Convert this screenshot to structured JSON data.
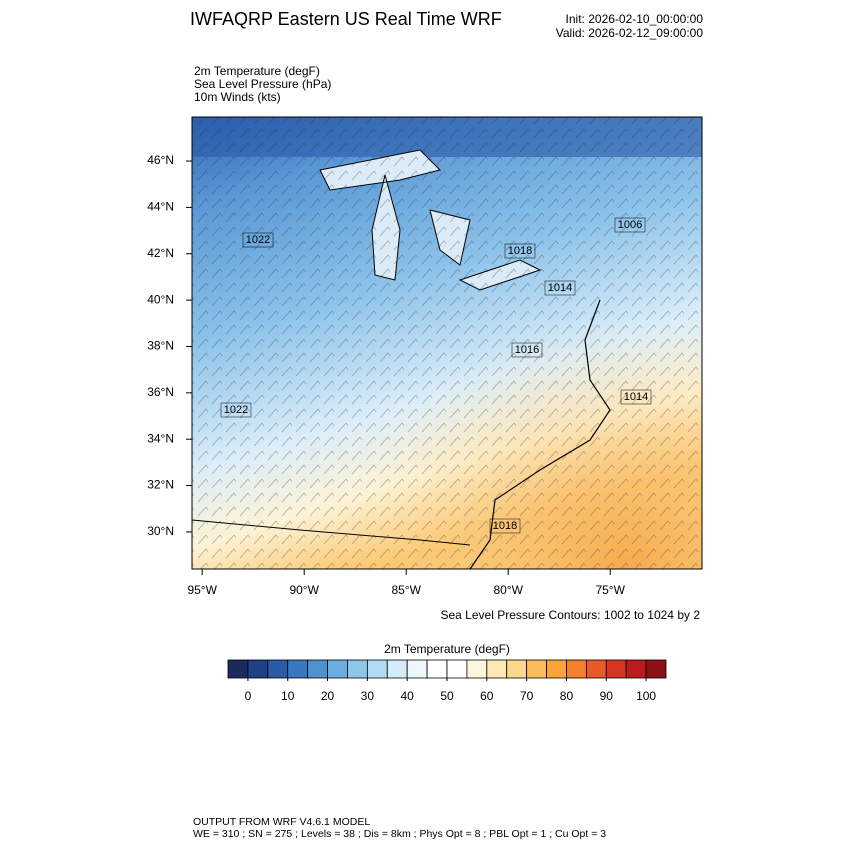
{
  "header": {
    "title": "IWFAQRP Eastern US Real Time WRF",
    "init": "Init: 2026-02-10_00:00:00",
    "valid": "Valid: 2026-02-12_09:00:00"
  },
  "fields": [
    "2m Temperature   (degF)",
    "Sea Level Pressure   (hPa)",
    "10m Winds   (kts)"
  ],
  "map": {
    "xlim": [
      -95.5,
      -70.5
    ],
    "ylim": [
      28.4,
      47.9
    ],
    "xticks": [
      {
        "value": -95,
        "label": "95°W"
      },
      {
        "value": -90,
        "label": "90°W"
      },
      {
        "value": -85,
        "label": "85°W"
      },
      {
        "value": -80,
        "label": "80°W"
      },
      {
        "value": -75,
        "label": "75°W"
      }
    ],
    "yticks": [
      {
        "value": 30,
        "label": "30°N"
      },
      {
        "value": 32,
        "label": "32°N"
      },
      {
        "value": 34,
        "label": "34°N"
      },
      {
        "value": 36,
        "label": "36°N"
      },
      {
        "value": 38,
        "label": "38°N"
      },
      {
        "value": 40,
        "label": "40°N"
      },
      {
        "value": 42,
        "label": "42°N"
      },
      {
        "value": 44,
        "label": "44°N"
      },
      {
        "value": 46,
        "label": "46°N"
      }
    ],
    "contour_labels": [
      "1022",
      "1022",
      "1018",
      "1014",
      "1016",
      "1014",
      "1018",
      "1006"
    ],
    "contour_note": "Sea Level Pressure Contours: 1002 to 1024 by 2"
  },
  "colorbar": {
    "title": "2m Temperature  (degF)",
    "range": [
      -5,
      105
    ],
    "ticks": [
      0,
      10,
      20,
      30,
      40,
      50,
      60,
      70,
      80,
      90,
      100
    ],
    "colors": [
      "#1a2a5e",
      "#1f3f86",
      "#2a5aa8",
      "#3a77c0",
      "#4f92d0",
      "#6aaedf",
      "#8cc7ea",
      "#b1dbf3",
      "#d4ecf9",
      "#eef7fc",
      "#ffffff",
      "#ffffff",
      "#fdf5dc",
      "#fde9b4",
      "#fcd68b",
      "#fbbd5c",
      "#f9a33a",
      "#f47f2c",
      "#e95a28",
      "#d83424",
      "#bd1a1f",
      "#8e1215"
    ]
  },
  "footer": [
    "OUTPUT FROM WRF V4.6.1 MODEL",
    "WE = 310 ; SN = 275 ; Levels = 38 ; Dis = 8km ; Phys Opt = 8 ; PBL Opt = 1 ; Cu Opt = 3"
  ]
}
